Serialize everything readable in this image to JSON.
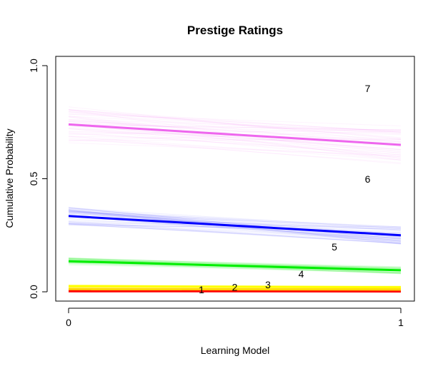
{
  "chart_data": {
    "type": "line",
    "title": "Prestige Ratings",
    "xlabel": "Learning Model",
    "ylabel": "Cumulative Probability",
    "x": [
      0,
      1
    ],
    "xlim": [
      0,
      1
    ],
    "ylim": [
      0,
      1
    ],
    "x_ticks": [
      "0",
      "1"
    ],
    "y_ticks": [
      "0.0",
      "0.5",
      "1.0"
    ],
    "grid": false,
    "legend": "none",
    "series": [
      {
        "color": "#ff0000",
        "values": [
          0.003,
          0.002
        ]
      },
      {
        "color": "#ffd700",
        "values": [
          0.012,
          0.01
        ]
      },
      {
        "color": "#ffff00",
        "values": [
          0.025,
          0.02
        ]
      },
      {
        "color": "#00ee00",
        "values": [
          0.135,
          0.095
        ]
      },
      {
        "color": "#0000ff",
        "values": [
          0.335,
          0.25
        ]
      },
      {
        "color": "#ee66ee",
        "values": [
          0.74,
          0.65
        ]
      }
    ],
    "annotations": [
      {
        "text": "1",
        "x": 0.4,
        "y": 0.005
      },
      {
        "text": "2",
        "x": 0.5,
        "y": 0.017
      },
      {
        "text": "3",
        "x": 0.6,
        "y": 0.027
      },
      {
        "text": "4",
        "x": 0.7,
        "y": 0.075
      },
      {
        "text": "5",
        "x": 0.8,
        "y": 0.195
      },
      {
        "text": "6",
        "x": 0.9,
        "y": 0.495
      },
      {
        "text": "7",
        "x": 0.9,
        "y": 0.895
      }
    ]
  }
}
